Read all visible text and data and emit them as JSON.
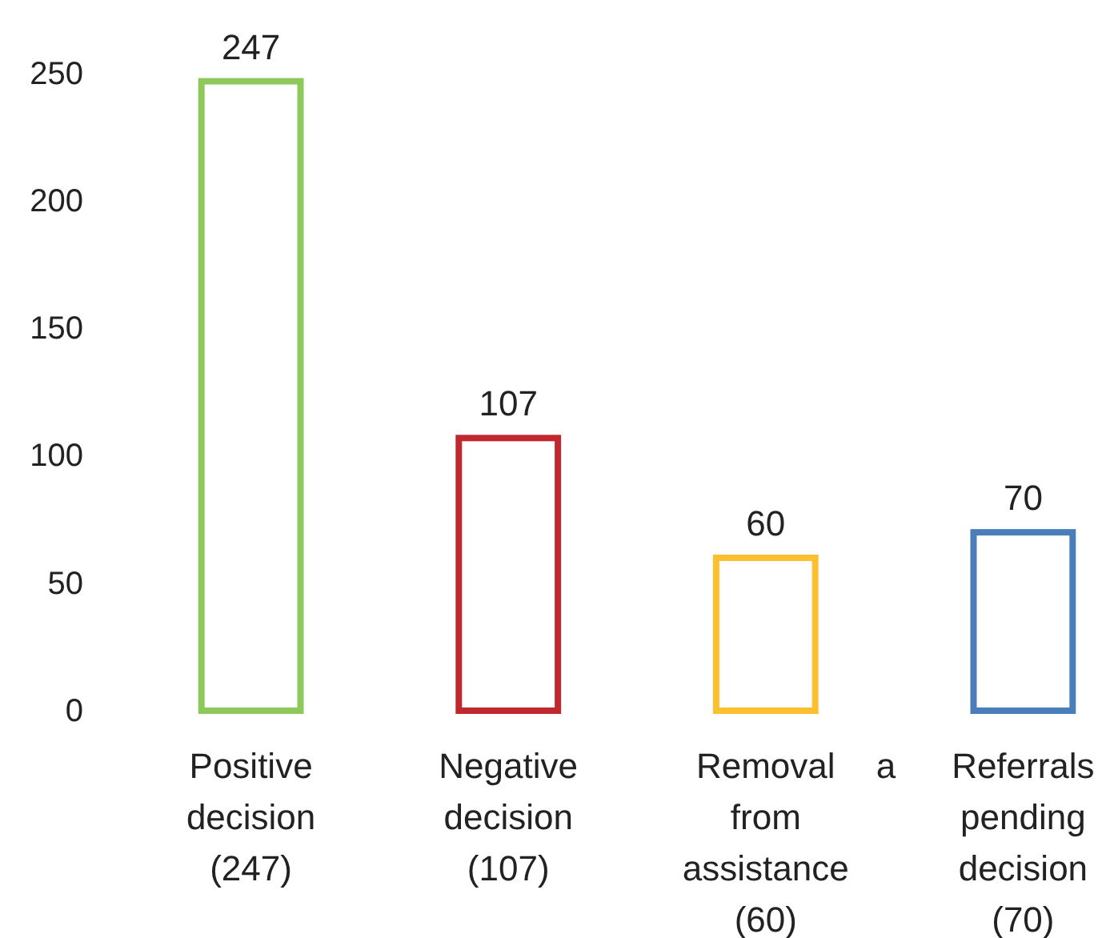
{
  "chart_data": {
    "type": "bar",
    "categories": [
      "Positive decision (247)",
      "Negative decision (107)",
      "Removal from assistance (60)",
      "Referrals pending decision (70)"
    ],
    "values": [
      247,
      107,
      60,
      70
    ],
    "colors": [
      "#8cc85a",
      "#c0282d",
      "#fcc02e",
      "#4a7ebb"
    ],
    "ylim": [
      0,
      250
    ],
    "yticks": [
      0,
      50,
      100,
      150,
      200,
      250
    ],
    "data_labels": true,
    "grid": false,
    "annotations": [
      "a"
    ]
  }
}
